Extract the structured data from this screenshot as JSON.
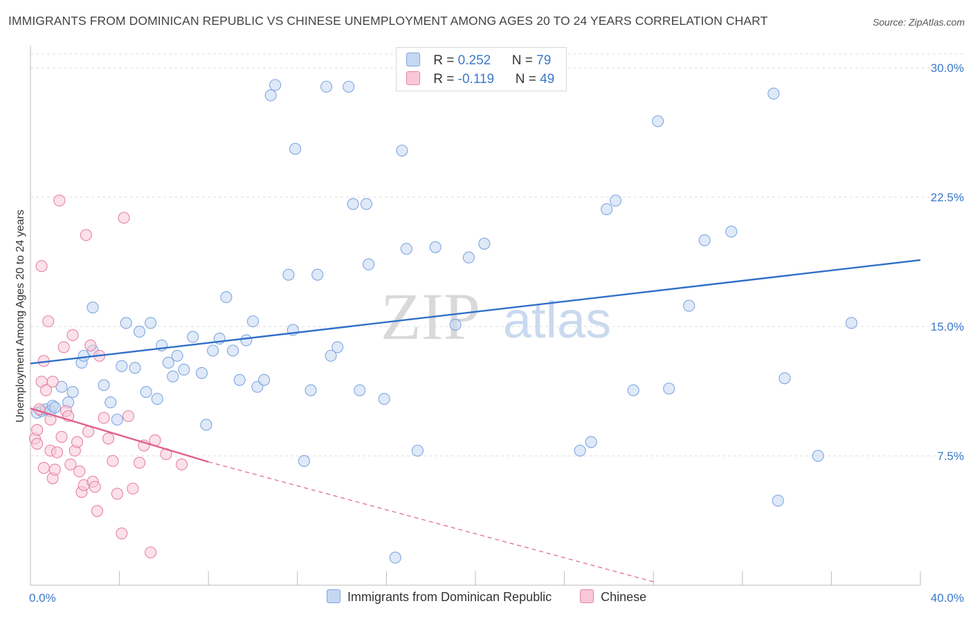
{
  "title": "IMMIGRANTS FROM DOMINICAN REPUBLIC VS CHINESE UNEMPLOYMENT AMONG AGES 20 TO 24 YEARS CORRELATION CHART",
  "source": "Source: ZipAtlas.com",
  "watermark": {
    "zip": "ZIP",
    "atlas": "atlas"
  },
  "colors": {
    "blue_fill": "#c5d7f2",
    "blue_stroke": "#7ea6e0",
    "blue_line": "#2f6fc9",
    "pink_fill": "#f8c8d8",
    "pink_stroke": "#e8829f",
    "pink_line": "#e0608a",
    "grid": "#dddddd",
    "axis_text": "#3b78c8"
  },
  "legend": {
    "series1": {
      "r_label": "R = ",
      "r_value": "0.252",
      "n_label": "N = ",
      "n_value": "79"
    },
    "series2": {
      "r_label": "R = ",
      "r_value": "-0.119",
      "n_label": "N = ",
      "n_value": "49"
    }
  },
  "chart_data": {
    "type": "scatter",
    "title": "IMMIGRANTS FROM DOMINICAN REPUBLIC VS CHINESE UNEMPLOYMENT AMONG AGES 20 TO 24 YEARS CORRELATION CHART",
    "xlabel": "",
    "ylabel": "Unemployment Among Ages 20 to 24 years",
    "xlim": [
      0,
      40
    ],
    "ylim": [
      0,
      30.8
    ],
    "x_tick_labels": [
      {
        "value": 0,
        "label": "0.0%"
      },
      {
        "value": 40,
        "label": "40.0%"
      }
    ],
    "y_tick_labels": [
      {
        "value": 7.5,
        "label": "7.5%"
      },
      {
        "value": 15,
        "label": "15.0%"
      },
      {
        "value": 22.5,
        "label": "22.5%"
      },
      {
        "value": 30,
        "label": "30.0%"
      }
    ],
    "grid": true,
    "series": [
      {
        "name": "Immigrants from Dominican Republic",
        "color": "blue",
        "trend": {
          "x": [
            0,
            40
          ],
          "y": [
            12.85,
            18.85
          ],
          "dashed_extension": false
        },
        "points": [
          [
            0.3,
            10.0
          ],
          [
            0.5,
            10.1
          ],
          [
            0.7,
            10.2
          ],
          [
            0.9,
            10.1
          ],
          [
            1.0,
            10.4
          ],
          [
            1.1,
            10.3
          ],
          [
            1.4,
            11.5
          ],
          [
            1.7,
            10.6
          ],
          [
            1.9,
            11.2
          ],
          [
            2.3,
            12.9
          ],
          [
            2.4,
            13.3
          ],
          [
            2.8,
            13.6
          ],
          [
            2.8,
            16.1
          ],
          [
            3.3,
            11.6
          ],
          [
            3.6,
            10.6
          ],
          [
            3.9,
            9.6
          ],
          [
            4.1,
            12.7
          ],
          [
            4.3,
            15.2
          ],
          [
            4.7,
            12.6
          ],
          [
            4.9,
            14.7
          ],
          [
            5.2,
            11.2
          ],
          [
            5.4,
            15.2
          ],
          [
            5.7,
            10.8
          ],
          [
            5.9,
            13.9
          ],
          [
            6.2,
            12.9
          ],
          [
            6.4,
            12.1
          ],
          [
            6.6,
            13.3
          ],
          [
            6.9,
            12.5
          ],
          [
            7.3,
            14.4
          ],
          [
            7.7,
            12.3
          ],
          [
            7.9,
            9.3
          ],
          [
            8.2,
            13.6
          ],
          [
            8.5,
            14.3
          ],
          [
            8.8,
            16.7
          ],
          [
            9.1,
            13.6
          ],
          [
            9.4,
            11.9
          ],
          [
            9.7,
            14.2
          ],
          [
            10.0,
            15.3
          ],
          [
            10.2,
            11.5
          ],
          [
            10.5,
            11.9
          ],
          [
            10.8,
            28.4
          ],
          [
            11.0,
            29.0
          ],
          [
            11.6,
            18.0
          ],
          [
            11.8,
            14.8
          ],
          [
            11.9,
            25.3
          ],
          [
            12.3,
            7.2
          ],
          [
            12.6,
            11.3
          ],
          [
            12.9,
            18.0
          ],
          [
            13.3,
            28.9
          ],
          [
            13.5,
            13.3
          ],
          [
            13.8,
            13.8
          ],
          [
            14.3,
            28.9
          ],
          [
            14.5,
            22.1
          ],
          [
            14.8,
            11.3
          ],
          [
            15.1,
            22.1
          ],
          [
            15.2,
            18.6
          ],
          [
            15.9,
            10.8
          ],
          [
            16.4,
            1.6
          ],
          [
            16.7,
            25.2
          ],
          [
            16.9,
            19.5
          ],
          [
            17.4,
            7.8
          ],
          [
            18.2,
            19.6
          ],
          [
            19.1,
            15.1
          ],
          [
            19.7,
            19.0
          ],
          [
            20.4,
            19.8
          ],
          [
            24.7,
            7.8
          ],
          [
            25.2,
            8.3
          ],
          [
            25.9,
            21.8
          ],
          [
            26.3,
            22.3
          ],
          [
            27.1,
            11.3
          ],
          [
            28.2,
            26.9
          ],
          [
            28.7,
            11.4
          ],
          [
            29.6,
            16.2
          ],
          [
            30.3,
            20.0
          ],
          [
            31.5,
            20.5
          ],
          [
            33.4,
            28.5
          ],
          [
            33.6,
            4.9
          ],
          [
            33.9,
            12.0
          ],
          [
            35.4,
            7.5
          ],
          [
            36.9,
            15.2
          ]
        ]
      },
      {
        "name": "Chinese",
        "color": "pink",
        "trend": {
          "x": [
            0,
            8.0
          ],
          "y": [
            10.25,
            7.15
          ],
          "extension_x": [
            8.0,
            28.0
          ],
          "extension_y": [
            7.15,
            0.2
          ],
          "dashed_extension": true
        },
        "points": [
          [
            0.2,
            8.5
          ],
          [
            0.3,
            9.0
          ],
          [
            0.4,
            10.2
          ],
          [
            0.5,
            11.8
          ],
          [
            0.6,
            13.0
          ],
          [
            0.7,
            11.3
          ],
          [
            0.8,
            15.3
          ],
          [
            0.9,
            9.6
          ],
          [
            0.9,
            7.8
          ],
          [
            1.0,
            11.8
          ],
          [
            1.0,
            6.2
          ],
          [
            1.1,
            6.7
          ],
          [
            1.2,
            7.7
          ],
          [
            1.3,
            22.3
          ],
          [
            1.4,
            8.6
          ],
          [
            1.5,
            13.8
          ],
          [
            1.6,
            10.1
          ],
          [
            1.7,
            9.8
          ],
          [
            1.8,
            7.0
          ],
          [
            1.9,
            14.5
          ],
          [
            2.0,
            7.8
          ],
          [
            2.1,
            8.3
          ],
          [
            2.2,
            6.6
          ],
          [
            2.3,
            5.4
          ],
          [
            2.4,
            5.8
          ],
          [
            2.5,
            20.3
          ],
          [
            2.6,
            8.9
          ],
          [
            2.7,
            13.9
          ],
          [
            2.8,
            6.0
          ],
          [
            2.9,
            5.7
          ],
          [
            3.0,
            4.3
          ],
          [
            3.1,
            13.3
          ],
          [
            3.3,
            9.7
          ],
          [
            3.5,
            8.5
          ],
          [
            3.7,
            7.2
          ],
          [
            3.9,
            5.3
          ],
          [
            4.1,
            3.0
          ],
          [
            4.2,
            21.3
          ],
          [
            4.4,
            9.8
          ],
          [
            4.6,
            5.6
          ],
          [
            4.9,
            7.1
          ],
          [
            5.1,
            8.1
          ],
          [
            5.4,
            1.9
          ],
          [
            5.6,
            8.4
          ],
          [
            6.1,
            7.6
          ],
          [
            6.8,
            7.0
          ],
          [
            0.3,
            8.2
          ],
          [
            0.6,
            6.8
          ],
          [
            0.5,
            18.5
          ]
        ]
      }
    ]
  },
  "bottom_legend": {
    "item1": "Immigrants from Dominican Republic",
    "item2": "Chinese"
  }
}
